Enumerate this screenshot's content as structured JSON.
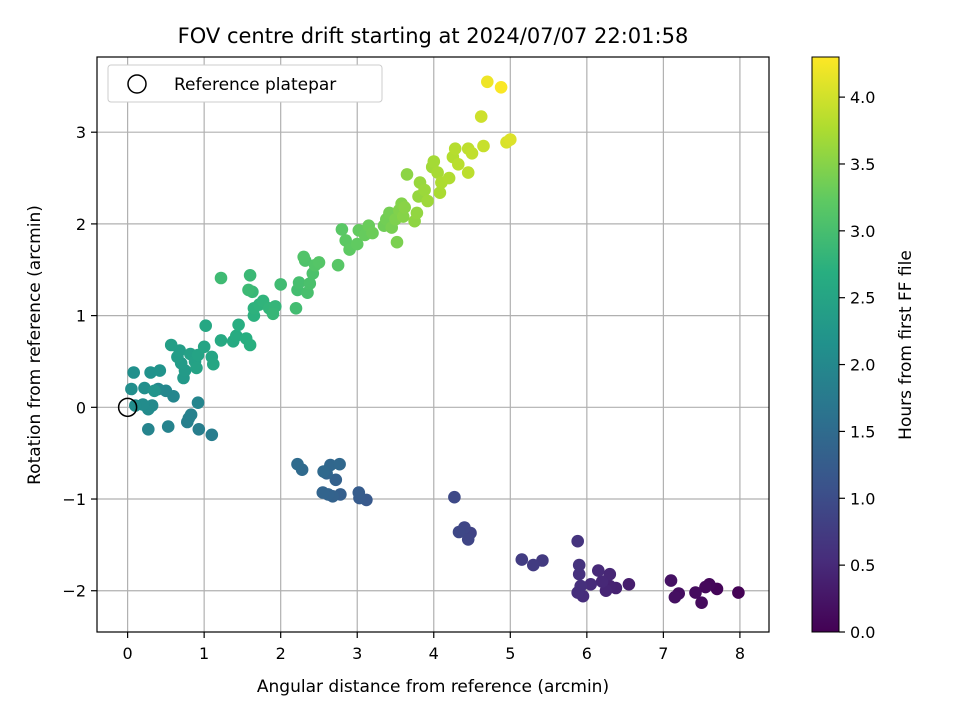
{
  "chart_data": {
    "type": "scatter",
    "title": "FOV centre drift starting at 2024/07/07 22:01:58",
    "xlabel": "Angular distance from reference (arcmin)",
    "ylabel": "Rotation from reference (arcmin)",
    "xlim": [
      -0.4,
      8.38
    ],
    "ylim": [
      -2.45,
      3.82
    ],
    "xticks": [
      0,
      1,
      2,
      3,
      4,
      5,
      6,
      7,
      8
    ],
    "yticks": [
      -2,
      -1,
      0,
      1,
      2,
      3
    ],
    "grid": true,
    "legend": {
      "placement": "top-left",
      "entries": [
        "Reference platepar"
      ]
    },
    "reference_point": {
      "x": 0,
      "y": 0,
      "marker": "open-circle"
    },
    "colormap": "viridis",
    "colorbar": {
      "label": "Hours from first FF file",
      "range": [
        0,
        4.3
      ],
      "ticks": [
        "0.0",
        "0.5",
        "1.0",
        "1.5",
        "2.0",
        "2.5",
        "3.0",
        "3.5",
        "4.0"
      ]
    },
    "series": [
      {
        "points": [
          {
            "x": 7.98,
            "y": -2.02,
            "c": 0.02
          },
          {
            "x": 7.7,
            "y": -1.98,
            "c": 0.05
          },
          {
            "x": 7.6,
            "y": -1.93,
            "c": 0.08
          },
          {
            "x": 7.55,
            "y": -1.96,
            "c": 0.1
          },
          {
            "x": 7.5,
            "y": -2.13,
            "c": 0.12
          },
          {
            "x": 7.42,
            "y": -2.02,
            "c": 0.14
          },
          {
            "x": 7.2,
            "y": -2.03,
            "c": 0.16
          },
          {
            "x": 7.15,
            "y": -2.07,
            "c": 0.18
          },
          {
            "x": 7.1,
            "y": -1.89,
            "c": 0.2
          },
          {
            "x": 6.55,
            "y": -1.93,
            "c": 0.35
          },
          {
            "x": 6.38,
            "y": -1.97,
            "c": 0.4
          },
          {
            "x": 6.3,
            "y": -1.95,
            "c": 0.42
          },
          {
            "x": 6.25,
            "y": -2.0,
            "c": 0.44
          },
          {
            "x": 6.3,
            "y": -1.82,
            "c": 0.46
          },
          {
            "x": 6.2,
            "y": -1.9,
            "c": 0.48
          },
          {
            "x": 6.15,
            "y": -1.78,
            "c": 0.5
          },
          {
            "x": 6.05,
            "y": -1.93,
            "c": 0.52
          },
          {
            "x": 5.95,
            "y": -2.06,
            "c": 0.54
          },
          {
            "x": 5.88,
            "y": -2.02,
            "c": 0.56
          },
          {
            "x": 5.92,
            "y": -1.95,
            "c": 0.58
          },
          {
            "x": 5.9,
            "y": -1.82,
            "c": 0.6
          },
          {
            "x": 5.9,
            "y": -1.72,
            "c": 0.62
          },
          {
            "x": 5.88,
            "y": -1.46,
            "c": 0.64
          },
          {
            "x": 5.42,
            "y": -1.67,
            "c": 0.72
          },
          {
            "x": 5.3,
            "y": -1.72,
            "c": 0.74
          },
          {
            "x": 5.15,
            "y": -1.66,
            "c": 0.76
          },
          {
            "x": 4.48,
            "y": -1.37,
            "c": 0.86
          },
          {
            "x": 4.45,
            "y": -1.44,
            "c": 0.88
          },
          {
            "x": 4.4,
            "y": -1.31,
            "c": 0.9
          },
          {
            "x": 4.33,
            "y": -1.36,
            "c": 0.92
          },
          {
            "x": 4.27,
            "y": -0.98,
            "c": 0.94
          },
          {
            "x": 3.12,
            "y": -1.01,
            "c": 1.2
          },
          {
            "x": 3.03,
            "y": -0.99,
            "c": 1.22
          },
          {
            "x": 3.02,
            "y": -0.93,
            "c": 1.24
          },
          {
            "x": 2.78,
            "y": -0.95,
            "c": 1.3
          },
          {
            "x": 2.72,
            "y": -0.79,
            "c": 1.32
          },
          {
            "x": 2.68,
            "y": -0.97,
            "c": 1.34
          },
          {
            "x": 2.62,
            "y": -0.95,
            "c": 1.36
          },
          {
            "x": 2.55,
            "y": -0.93,
            "c": 1.38
          },
          {
            "x": 2.6,
            "y": -0.72,
            "c": 1.4
          },
          {
            "x": 2.65,
            "y": -0.63,
            "c": 1.42
          },
          {
            "x": 2.77,
            "y": -0.62,
            "c": 1.44
          },
          {
            "x": 2.56,
            "y": -0.7,
            "c": 1.46
          },
          {
            "x": 2.28,
            "y": -0.68,
            "c": 1.48
          },
          {
            "x": 2.22,
            "y": -0.62,
            "c": 1.5
          },
          {
            "x": 1.1,
            "y": -0.3,
            "c": 1.8
          },
          {
            "x": 0.93,
            "y": -0.24,
            "c": 1.82
          },
          {
            "x": 0.78,
            "y": -0.16,
            "c": 1.84
          },
          {
            "x": 0.8,
            "y": -0.12,
            "c": 1.86
          },
          {
            "x": 0.83,
            "y": -0.08,
            "c": 1.88
          },
          {
            "x": 0.53,
            "y": -0.21,
            "c": 1.9
          },
          {
            "x": 0.27,
            "y": -0.24,
            "c": 1.92
          },
          {
            "x": 0.92,
            "y": 0.05,
            "c": 1.94
          },
          {
            "x": 0.6,
            "y": 0.12,
            "c": 1.96
          },
          {
            "x": 0.5,
            "y": 0.18,
            "c": 1.98
          },
          {
            "x": 0.4,
            "y": 0.2,
            "c": 2.0
          },
          {
            "x": 0.32,
            "y": 0.02,
            "c": 2.02
          },
          {
            "x": 0.27,
            "y": -0.02,
            "c": 2.04
          },
          {
            "x": 0.2,
            "y": 0.03,
            "c": 2.06
          },
          {
            "x": 0.1,
            "y": 0.02,
            "c": 2.08
          },
          {
            "x": 0.05,
            "y": 0.2,
            "c": 2.1
          },
          {
            "x": 0.22,
            "y": 0.21,
            "c": 2.12
          },
          {
            "x": 0.08,
            "y": 0.38,
            "c": 2.14
          },
          {
            "x": 0.3,
            "y": 0.38,
            "c": 2.16
          },
          {
            "x": 0.42,
            "y": 0.4,
            "c": 2.18
          },
          {
            "x": 0.35,
            "y": 0.18,
            "c": 2.2
          },
          {
            "x": 0.73,
            "y": 0.32,
            "c": 2.3
          },
          {
            "x": 0.75,
            "y": 0.4,
            "c": 2.32
          },
          {
            "x": 0.7,
            "y": 0.48,
            "c": 2.34
          },
          {
            "x": 0.65,
            "y": 0.55,
            "c": 2.36
          },
          {
            "x": 0.68,
            "y": 0.62,
            "c": 2.38
          },
          {
            "x": 0.57,
            "y": 0.68,
            "c": 2.4
          },
          {
            "x": 0.82,
            "y": 0.58,
            "c": 2.42
          },
          {
            "x": 0.88,
            "y": 0.5,
            "c": 2.44
          },
          {
            "x": 0.9,
            "y": 0.43,
            "c": 2.46
          },
          {
            "x": 0.92,
            "y": 0.57,
            "c": 2.48
          },
          {
            "x": 1.0,
            "y": 0.66,
            "c": 2.5
          },
          {
            "x": 1.1,
            "y": 0.55,
            "c": 2.52
          },
          {
            "x": 1.12,
            "y": 0.47,
            "c": 2.54
          },
          {
            "x": 1.02,
            "y": 0.89,
            "c": 2.56
          },
          {
            "x": 1.22,
            "y": 0.73,
            "c": 2.6
          },
          {
            "x": 1.38,
            "y": 0.72,
            "c": 2.62
          },
          {
            "x": 1.42,
            "y": 0.78,
            "c": 2.64
          },
          {
            "x": 1.45,
            "y": 0.9,
            "c": 2.66
          },
          {
            "x": 1.55,
            "y": 0.75,
            "c": 2.68
          },
          {
            "x": 1.6,
            "y": 0.68,
            "c": 2.7
          },
          {
            "x": 1.65,
            "y": 1.0,
            "c": 2.72
          },
          {
            "x": 1.65,
            "y": 1.08,
            "c": 2.74
          },
          {
            "x": 1.72,
            "y": 1.12,
            "c": 2.76
          },
          {
            "x": 1.77,
            "y": 1.16,
            "c": 2.78
          },
          {
            "x": 1.85,
            "y": 1.08,
            "c": 2.8
          },
          {
            "x": 1.93,
            "y": 1.1,
            "c": 2.82
          },
          {
            "x": 1.9,
            "y": 1.02,
            "c": 2.84
          },
          {
            "x": 1.63,
            "y": 1.26,
            "c": 2.86
          },
          {
            "x": 1.6,
            "y": 1.44,
            "c": 2.88
          },
          {
            "x": 1.58,
            "y": 1.28,
            "c": 2.9
          },
          {
            "x": 1.22,
            "y": 1.41,
            "c": 2.92
          },
          {
            "x": 2.0,
            "y": 1.34,
            "c": 2.94
          },
          {
            "x": 2.2,
            "y": 1.08,
            "c": 2.96
          },
          {
            "x": 2.22,
            "y": 1.28,
            "c": 2.98
          },
          {
            "x": 2.24,
            "y": 1.36,
            "c": 3.0
          },
          {
            "x": 2.35,
            "y": 1.25,
            "c": 3.02
          },
          {
            "x": 2.38,
            "y": 1.35,
            "c": 3.04
          },
          {
            "x": 2.42,
            "y": 1.46,
            "c": 3.06
          },
          {
            "x": 2.32,
            "y": 1.6,
            "c": 3.08
          },
          {
            "x": 2.3,
            "y": 1.64,
            "c": 3.1
          },
          {
            "x": 2.45,
            "y": 1.55,
            "c": 3.12
          },
          {
            "x": 2.5,
            "y": 1.58,
            "c": 3.14
          },
          {
            "x": 2.75,
            "y": 1.55,
            "c": 3.16
          },
          {
            "x": 2.8,
            "y": 1.94,
            "c": 3.18
          },
          {
            "x": 2.85,
            "y": 1.82,
            "c": 3.2
          },
          {
            "x": 2.9,
            "y": 1.72,
            "c": 3.22
          },
          {
            "x": 3.0,
            "y": 1.78,
            "c": 3.24
          },
          {
            "x": 3.02,
            "y": 1.93,
            "c": 3.26
          },
          {
            "x": 3.1,
            "y": 1.88,
            "c": 3.28
          },
          {
            "x": 3.15,
            "y": 1.98,
            "c": 3.3
          },
          {
            "x": 3.2,
            "y": 1.9,
            "c": 3.32
          },
          {
            "x": 3.35,
            "y": 1.98,
            "c": 3.34
          },
          {
            "x": 3.38,
            "y": 2.05,
            "c": 3.36
          },
          {
            "x": 3.42,
            "y": 2.12,
            "c": 3.38
          },
          {
            "x": 3.45,
            "y": 1.96,
            "c": 3.4
          },
          {
            "x": 3.52,
            "y": 1.8,
            "c": 3.42
          },
          {
            "x": 3.5,
            "y": 2.05,
            "c": 3.44
          },
          {
            "x": 3.55,
            "y": 2.15,
            "c": 3.46
          },
          {
            "x": 3.58,
            "y": 2.22,
            "c": 3.48
          },
          {
            "x": 3.6,
            "y": 2.08,
            "c": 3.5
          },
          {
            "x": 3.62,
            "y": 2.18,
            "c": 3.52
          },
          {
            "x": 3.65,
            "y": 2.54,
            "c": 3.54
          },
          {
            "x": 3.75,
            "y": 2.03,
            "c": 3.56
          },
          {
            "x": 3.78,
            "y": 2.12,
            "c": 3.58
          },
          {
            "x": 3.8,
            "y": 2.3,
            "c": 3.6
          },
          {
            "x": 3.82,
            "y": 2.45,
            "c": 3.62
          },
          {
            "x": 3.88,
            "y": 2.37,
            "c": 3.64
          },
          {
            "x": 3.92,
            "y": 2.25,
            "c": 3.66
          },
          {
            "x": 3.98,
            "y": 2.62,
            "c": 3.68
          },
          {
            "x": 4.0,
            "y": 2.68,
            "c": 3.7
          },
          {
            "x": 4.05,
            "y": 2.56,
            "c": 3.72
          },
          {
            "x": 4.08,
            "y": 2.34,
            "c": 3.74
          },
          {
            "x": 4.1,
            "y": 2.45,
            "c": 3.76
          },
          {
            "x": 4.2,
            "y": 2.5,
            "c": 3.78
          },
          {
            "x": 4.25,
            "y": 2.73,
            "c": 3.8
          },
          {
            "x": 4.28,
            "y": 2.82,
            "c": 3.82
          },
          {
            "x": 4.32,
            "y": 2.65,
            "c": 3.84
          },
          {
            "x": 4.45,
            "y": 2.56,
            "c": 3.86
          },
          {
            "x": 4.45,
            "y": 2.82,
            "c": 3.88
          },
          {
            "x": 4.5,
            "y": 2.77,
            "c": 3.9
          },
          {
            "x": 4.65,
            "y": 2.85,
            "c": 3.94
          },
          {
            "x": 4.62,
            "y": 3.17,
            "c": 3.98
          },
          {
            "x": 4.95,
            "y": 2.89,
            "c": 4.05
          },
          {
            "x": 5.0,
            "y": 2.92,
            "c": 4.08
          },
          {
            "x": 4.7,
            "y": 3.55,
            "c": 4.2
          },
          {
            "x": 4.88,
            "y": 3.49,
            "c": 4.28
          }
        ]
      }
    ]
  }
}
